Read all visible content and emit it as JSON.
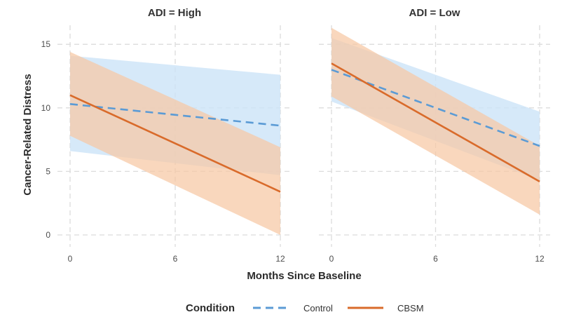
{
  "chart_data": {
    "type": "line",
    "facet_variable": "ADI",
    "xlabel": "Months Since Baseline",
    "ylabel": "Cancer-Related Distress",
    "xlim": [
      0,
      12
    ],
    "ylim": [
      0,
      16.5
    ],
    "x_ticks": [
      0,
      6,
      12
    ],
    "y_ticks": [
      0,
      5,
      10,
      15
    ],
    "legend": {
      "title": "Condition",
      "position": "bottom",
      "entries": [
        "Control",
        "CBSM"
      ]
    },
    "colors": {
      "Control": "#5b9bd5",
      "CBSM": "#d96b2b",
      "Control_band": "#cce3f7",
      "CBSM_band": "#f7c7a4"
    },
    "panels": [
      {
        "title": "ADI = High",
        "series": [
          {
            "name": "Control",
            "x": [
              0,
              12
            ],
            "y": [
              10.3,
              8.6
            ],
            "lower": [
              6.6,
              4.7
            ],
            "upper": [
              14.1,
              12.6
            ]
          },
          {
            "name": "CBSM",
            "x": [
              0,
              12
            ],
            "y": [
              11.0,
              3.4
            ],
            "lower": [
              7.8,
              0.0
            ],
            "upper": [
              14.4,
              6.9
            ]
          }
        ]
      },
      {
        "title": "ADI = Low",
        "series": [
          {
            "name": "Control",
            "x": [
              0,
              12
            ],
            "y": [
              13.0,
              7.0
            ],
            "lower": [
              10.5,
              4.3
            ],
            "upper": [
              15.5,
              9.7
            ]
          },
          {
            "name": "CBSM",
            "x": [
              0,
              12
            ],
            "y": [
              13.5,
              4.2
            ],
            "lower": [
              10.9,
              1.6
            ],
            "upper": [
              16.3,
              7.0
            ]
          }
        ]
      }
    ]
  }
}
